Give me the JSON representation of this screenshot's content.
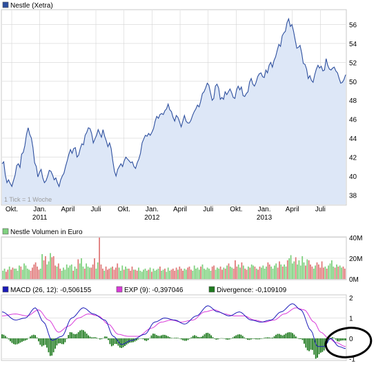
{
  "colors": {
    "price_line": "#2d4f9e",
    "price_fill": "#dde7f7",
    "grid": "#d4d4d4",
    "frame": "#c8c8c8",
    "volume_up": "#7fd17f",
    "volume_down": "#e07a7a",
    "macd": "#1a1ab8",
    "exp": "#d93ad9",
    "divergence": "#1e7a1e",
    "highlight_circle": "#000000"
  },
  "chart_data": [
    {
      "type": "line",
      "legend": "Nestle (Xetra)",
      "note": "1 Tick = 1 Woche",
      "ylim": [
        37,
        57.5
      ],
      "y_ticks": [
        38,
        40,
        42,
        44,
        46,
        48,
        50,
        52,
        54,
        56
      ],
      "x_tick_labels": [
        {
          "month": "Okt.",
          "year": ""
        },
        {
          "month": "Jan.",
          "year": "2011"
        },
        {
          "month": "April",
          "year": ""
        },
        {
          "month": "Juli",
          "year": ""
        },
        {
          "month": "Okt.",
          "year": ""
        },
        {
          "month": "Jan.",
          "year": "2012"
        },
        {
          "month": "April",
          "year": ""
        },
        {
          "month": "Juli",
          "year": ""
        },
        {
          "month": "Okt.",
          "year": ""
        },
        {
          "month": "Jan.",
          "year": "2013"
        },
        {
          "month": "April",
          "year": ""
        },
        {
          "month": "Juli",
          "year": ""
        }
      ],
      "values": [
        41.3,
        41.5,
        40.1,
        39.3,
        39.6,
        39.2,
        38.9,
        39.5,
        40.1,
        41.1,
        41.3,
        40.9,
        42.3,
        42.5,
        43.2,
        44.4,
        45.1,
        44.4,
        44.0,
        43.0,
        41.4,
        41.0,
        39.9,
        40.4,
        40.7,
        39.8,
        39.3,
        39.5,
        40.0,
        40.6,
        40.5,
        40.1,
        39.6,
        39.8,
        39.3,
        38.9,
        39.6,
        40.0,
        40.3,
        41.0,
        41.6,
        42.3,
        42.8,
        42.4,
        42.9,
        43.0,
        42.0,
        42.2,
        42.9,
        43.4,
        43.3,
        44.3,
        44.6,
        45.1,
        45.0,
        44.5,
        43.5,
        43.9,
        44.3,
        44.9,
        44.5,
        44.1,
        44.9,
        44.2,
        43.7,
        43.1,
        43.5,
        42.9,
        41.6,
        40.5,
        40.0,
        40.7,
        41.0,
        41.3,
        41.0,
        41.6,
        42.0,
        41.8,
        41.6,
        41.4,
        41.5,
        41.0,
        40.8,
        41.4,
        41.8,
        42.4,
        43.5,
        43.9,
        44.3,
        44.2,
        44.5,
        44.3,
        44.6,
        45.0,
        45.8,
        46.3,
        46.1,
        46.5,
        46.6,
        46.5,
        46.9,
        47.1,
        47.6,
        47.0,
        46.8,
        46.2,
        45.8,
        46.4,
        46.2,
        45.7,
        45.2,
        45.8,
        46.4,
        45.8,
        45.6,
        45.6,
        45.9,
        46.4,
        46.8,
        47.1,
        47.5,
        47.3,
        47.9,
        48.7,
        48.9,
        49.3,
        49.8,
        49.6,
        48.8,
        48.0,
        48.2,
        49.5,
        49.7,
        49.3,
        48.1,
        48.3,
        48.1,
        48.9,
        48.6,
        48.9,
        49.2,
        48.8,
        48.3,
        48.2,
        49.1,
        49.5,
        49.1,
        49.4,
        48.5,
        48.4,
        48.7,
        48.9,
        49.9,
        50.3,
        49.7,
        49.5,
        49.9,
        50.5,
        50.8,
        50.9,
        50.5,
        50.4,
        51.2,
        50.9,
        51.7,
        52.0,
        51.5,
        52.2,
        52.6,
        53.3,
        53.9,
        53.7,
        54.8,
        55.1,
        55.3,
        56.2,
        56.6,
        55.8,
        56.0,
        55.3,
        54.4,
        53.5,
        53.6,
        53.8,
        53.0,
        51.9,
        51.8,
        51.3,
        50.3,
        50.6,
        50.1,
        49.9,
        50.7,
        51.3,
        51.7,
        51.4,
        51.6,
        51.1,
        51.2,
        52.4,
        51.7,
        51.3,
        51.2,
        51.4,
        51.5,
        51.1,
        50.9,
        50.3,
        49.8,
        49.9,
        50.2,
        50.7
      ]
    },
    {
      "type": "bar",
      "legend": "Nestle Volumen in Euro",
      "ylim": [
        0,
        40
      ],
      "y_ticks": [
        {
          "v": 0,
          "label": "0M"
        },
        {
          "v": 20,
          "label": "20M"
        },
        {
          "v": 40,
          "label": "40M"
        }
      ],
      "values": [
        8,
        10,
        7,
        9,
        12,
        9,
        11,
        10,
        10,
        8,
        13,
        12,
        9,
        15,
        13,
        10,
        9,
        8,
        11,
        14,
        16,
        12,
        9,
        10,
        24,
        18,
        22,
        14,
        17,
        25,
        21,
        22,
        13,
        12,
        15,
        10,
        8,
        11,
        9,
        14,
        11,
        13,
        14,
        8,
        12,
        10,
        19,
        15,
        20,
        12,
        10,
        15,
        12,
        11,
        11,
        14,
        20,
        10,
        16,
        40,
        14,
        10,
        8,
        12,
        9,
        10,
        11,
        12,
        9,
        11,
        15,
        11,
        8,
        13,
        9,
        12,
        10,
        10,
        8,
        12,
        9,
        9,
        8,
        11,
        8,
        7,
        9,
        10,
        8,
        9,
        11,
        7,
        10,
        8,
        9,
        10,
        12,
        8,
        9,
        10,
        7,
        11,
        8,
        9,
        10,
        8,
        11,
        9,
        12,
        10,
        8,
        10,
        9,
        11,
        12,
        9,
        8,
        13,
        10,
        11,
        9,
        12,
        14,
        10,
        9,
        11,
        10,
        8,
        12,
        13,
        9,
        11,
        10,
        12,
        9,
        11,
        10,
        13,
        15,
        12,
        11,
        10,
        18,
        12,
        14,
        11,
        16,
        13,
        10,
        9,
        12,
        11,
        14,
        13,
        12,
        10,
        9,
        12,
        11,
        13,
        10,
        12,
        16,
        14,
        12,
        10,
        13,
        15,
        11,
        17,
        14,
        12,
        14,
        12,
        18,
        20,
        23,
        15,
        17,
        21,
        14,
        18,
        13,
        22,
        16,
        13,
        19,
        18,
        14,
        12,
        10,
        13,
        16,
        14,
        11,
        17,
        11,
        12,
        10,
        13,
        15,
        18,
        12,
        11,
        14,
        12,
        13,
        11,
        12,
        10
      ],
      "up": [
        1,
        1,
        0,
        0,
        1,
        0,
        0,
        1,
        1,
        1,
        1,
        0,
        1,
        1,
        1,
        1,
        1,
        0,
        0,
        0,
        0,
        0,
        0,
        1,
        1,
        0,
        0,
        1,
        1,
        1,
        0,
        0,
        0,
        1,
        0,
        0,
        1,
        1,
        1,
        1,
        1,
        1,
        1,
        0,
        1,
        1,
        0,
        1,
        1,
        1,
        0,
        1,
        1,
        1,
        0,
        0,
        0,
        1,
        1,
        0,
        0,
        0,
        1,
        0,
        0,
        0,
        1,
        0,
        0,
        0,
        0,
        1,
        1,
        1,
        0,
        1,
        1,
        0,
        0,
        0,
        1,
        0,
        0,
        1,
        1,
        1,
        1,
        1,
        1,
        0,
        1,
        0,
        1,
        1,
        1,
        1,
        0,
        1,
        1,
        0,
        1,
        1,
        1,
        0,
        0,
        0,
        0,
        1,
        0,
        0,
        0,
        1,
        1,
        0,
        0,
        0,
        1,
        1,
        1,
        1,
        1,
        0,
        1,
        1,
        1,
        1,
        1,
        1,
        0,
        0,
        1,
        1,
        1,
        0,
        0,
        1,
        0,
        1,
        0,
        1,
        1,
        0,
        0,
        0,
        1,
        1,
        0,
        1,
        0,
        0,
        1,
        0,
        1,
        1,
        0,
        1,
        0,
        0,
        1,
        1,
        1,
        1,
        0,
        0,
        1,
        1,
        1,
        1,
        0,
        0,
        1,
        0,
        1,
        1,
        0,
        1,
        1,
        1,
        1,
        0,
        1,
        1,
        1,
        1,
        1,
        0,
        1,
        0,
        0,
        0,
        1,
        1,
        0,
        0,
        0,
        0,
        0,
        1,
        0,
        1,
        1,
        1,
        1,
        0,
        1,
        0,
        1,
        1,
        0,
        0,
        1,
        0,
        1,
        0,
        0,
        0,
        0,
        1,
        1,
        1
      ]
    },
    {
      "type": "line",
      "series_names": [
        "MACD (26, 12): -0,506155",
        "EXP (9): -0,397046",
        "Divergence: -0,109109"
      ],
      "ylim": [
        -1.05,
        2.1
      ],
      "y_ticks": [
        {
          "v": 2,
          "label": "2"
        },
        {
          "v": 1,
          "label": "1"
        },
        {
          "v": 0,
          "label": "0"
        },
        {
          "v": -1,
          "label": "-1"
        }
      ],
      "macd_anchors": [
        [
          0,
          1.3
        ],
        [
          8,
          0.9
        ],
        [
          14,
          1.0
        ],
        [
          20,
          1.5
        ],
        [
          25,
          0.8
        ],
        [
          30,
          -0.1
        ],
        [
          36,
          0.1
        ],
        [
          42,
          1.0
        ],
        [
          49,
          1.5
        ],
        [
          55,
          1.2
        ],
        [
          62,
          0.9
        ],
        [
          67,
          0.1
        ],
        [
          72,
          -0.3
        ],
        [
          78,
          -0.1
        ],
        [
          86,
          0.2
        ],
        [
          92,
          0.8
        ],
        [
          98,
          1.0
        ],
        [
          104,
          0.9
        ],
        [
          110,
          0.7
        ],
        [
          117,
          1.1
        ],
        [
          124,
          1.6
        ],
        [
          130,
          1.3
        ],
        [
          137,
          1.1
        ],
        [
          143,
          1.3
        ],
        [
          150,
          0.9
        ],
        [
          156,
          0.8
        ],
        [
          162,
          0.9
        ],
        [
          168,
          1.3
        ],
        [
          175,
          1.7
        ],
        [
          180,
          1.4
        ],
        [
          186,
          0.4
        ],
        [
          190,
          -0.4
        ],
        [
          194,
          -0.4
        ],
        [
          198,
          0.0
        ],
        [
          203,
          -0.4
        ],
        [
          207,
          -0.5
        ]
      ],
      "exp_anchors": [
        [
          0,
          1.1
        ],
        [
          8,
          1.2
        ],
        [
          15,
          1.1
        ],
        [
          22,
          1.4
        ],
        [
          28,
          0.9
        ],
        [
          34,
          0.3
        ],
        [
          40,
          0.6
        ],
        [
          46,
          1.0
        ],
        [
          52,
          1.2
        ],
        [
          58,
          1.1
        ],
        [
          64,
          0.7
        ],
        [
          70,
          0.2
        ],
        [
          76,
          0.1
        ],
        [
          82,
          0.1
        ],
        [
          90,
          0.5
        ],
        [
          96,
          0.8
        ],
        [
          102,
          0.9
        ],
        [
          108,
          0.8
        ],
        [
          115,
          0.9
        ],
        [
          122,
          1.3
        ],
        [
          128,
          1.4
        ],
        [
          134,
          1.2
        ],
        [
          140,
          1.1
        ],
        [
          146,
          1.1
        ],
        [
          152,
          0.9
        ],
        [
          158,
          0.8
        ],
        [
          164,
          0.9
        ],
        [
          170,
          1.2
        ],
        [
          177,
          1.5
        ],
        [
          182,
          1.4
        ],
        [
          188,
          0.8
        ],
        [
          192,
          0.3
        ],
        [
          197,
          0.0
        ],
        [
          201,
          -0.2
        ],
        [
          207,
          -0.4
        ]
      ]
    }
  ]
}
